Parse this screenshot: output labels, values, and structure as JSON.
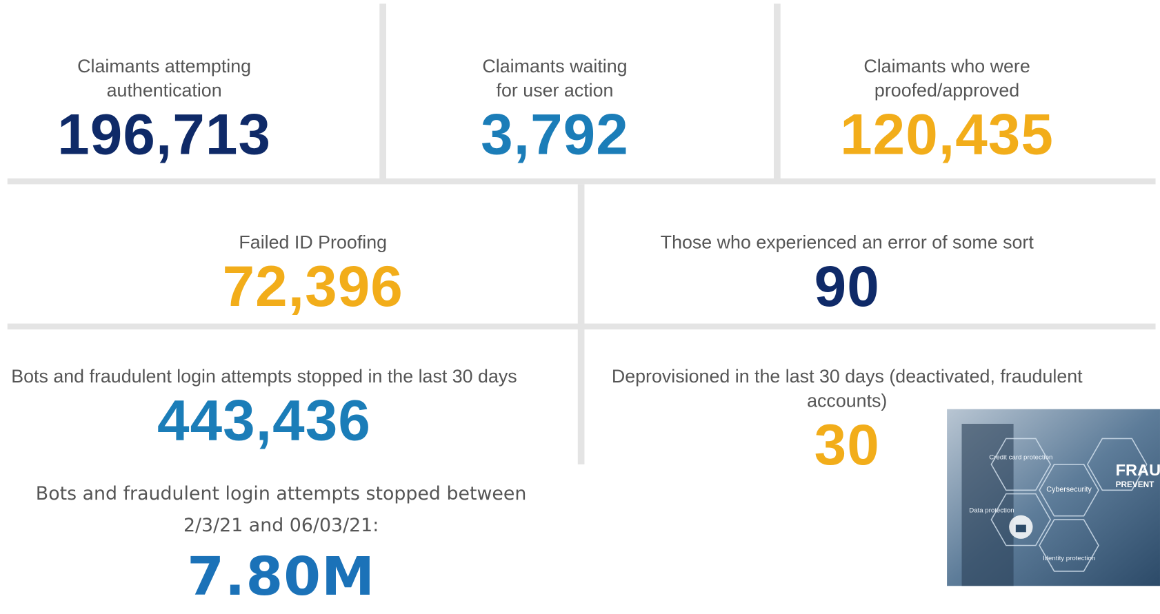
{
  "tiles": [
    {
      "label": "Claimants attempting authentication",
      "value": "196,713"
    },
    {
      "label": "Claimants waiting for user action",
      "value": "3,792"
    },
    {
      "label": "Claimants who were proofed/approved",
      "value": "120,435"
    },
    {
      "label": "Failed ID Proofing",
      "value": "72,396"
    },
    {
      "label": "Those who experienced an error of some sort",
      "value": "90"
    },
    {
      "label": "Bots and fraudulent login attempts stopped in the last 30 days",
      "value": "443,436"
    },
    {
      "label": "Deprovisioned in the last 30 days (deactivated, fraudulent accounts)",
      "value": "30"
    }
  ],
  "summary": {
    "label": "Bots and fraudulent login attempts stopped between 2/3/21 and 06/03/21:",
    "value": "7.80M"
  },
  "image": {
    "labels": [
      "Credit card protection",
      "Data protection",
      "Cybersecurity",
      "Identity protection",
      "FRAU",
      "PREVENT"
    ]
  }
}
